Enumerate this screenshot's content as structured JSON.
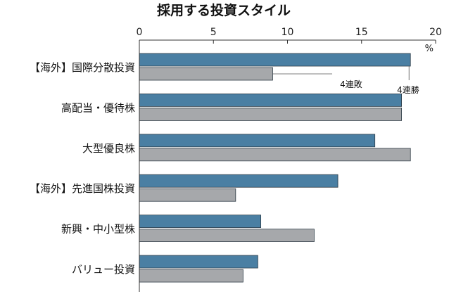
{
  "chart_data": {
    "type": "bar",
    "orientation": "horizontal",
    "title": "採用する投資スタイル",
    "unit": "%",
    "xlim": [
      0,
      20
    ],
    "ticks": [
      "0",
      "5",
      "10",
      "15",
      "20"
    ],
    "categories": [
      "【海外】国際分散投資",
      "高配当・優待株",
      "大型優良株",
      "【海外】先進国株投資",
      "新興・中小型株",
      "バリュー投資"
    ],
    "series": [
      {
        "color": "#4a7fa3",
        "values": [
          18.3,
          17.7,
          15.9,
          13.4,
          8.2,
          8.0
        ]
      },
      {
        "color": "#a6a8ab",
        "values": [
          9.0,
          17.7,
          18.3,
          6.5,
          11.8,
          7.0
        ]
      }
    ],
    "annotations": [
      {
        "text": "4連敗",
        "category_index": 0,
        "series_index": 1
      },
      {
        "text": "4連勝",
        "category_index": 0,
        "series_index": 0
      }
    ],
    "grid": false
  }
}
